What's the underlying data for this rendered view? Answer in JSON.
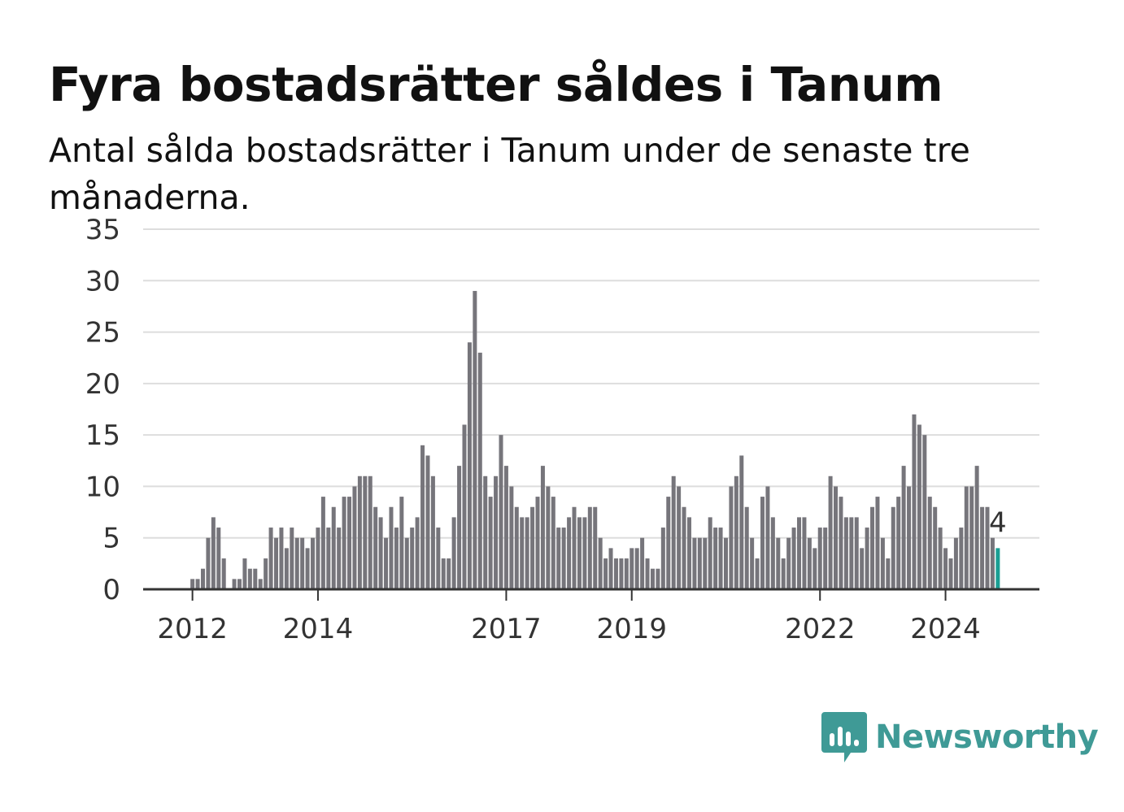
{
  "header": {
    "title": "Fyra bostadsrätter såldes i Tanum",
    "subtitle": "Antal sålda bostadsrätter i Tanum under de senaste tre månaderna."
  },
  "brand": {
    "name": "Newsworthy",
    "color": "#3f9a96",
    "icon": "newsworthy-logo-icon"
  },
  "colors": {
    "bar": "#76757b",
    "highlight": "#1a9e93",
    "grid": "#dddddd",
    "axis": "#333333"
  },
  "chart_data": {
    "type": "bar",
    "x_start": "2011-12",
    "x_tick_labels": [
      "2012",
      "2014",
      "2017",
      "2019",
      "2022",
      "2024"
    ],
    "y_ticks": [
      0,
      5,
      10,
      15,
      20,
      25,
      30,
      35
    ],
    "ylim": [
      0,
      35
    ],
    "grid": true,
    "highlight_label": "4",
    "values": [
      0,
      1,
      1,
      2,
      5,
      7,
      6,
      3,
      0,
      1,
      1,
      3,
      2,
      2,
      1,
      3,
      6,
      5,
      6,
      4,
      6,
      5,
      5,
      4,
      5,
      6,
      9,
      6,
      8,
      6,
      9,
      9,
      10,
      11,
      11,
      11,
      8,
      7,
      5,
      8,
      6,
      9,
      5,
      6,
      7,
      14,
      13,
      11,
      6,
      3,
      3,
      7,
      12,
      16,
      24,
      29,
      23,
      11,
      9,
      11,
      15,
      12,
      10,
      8,
      7,
      7,
      8,
      9,
      12,
      10,
      9,
      6,
      6,
      7,
      8,
      7,
      7,
      8,
      8,
      5,
      3,
      4,
      3,
      3,
      3,
      4,
      4,
      5,
      3,
      2,
      2,
      6,
      9,
      11,
      10,
      8,
      7,
      5,
      5,
      5,
      7,
      6,
      6,
      5,
      10,
      11,
      13,
      8,
      5,
      3,
      9,
      10,
      7,
      5,
      3,
      5,
      6,
      7,
      7,
      5,
      4,
      6,
      6,
      11,
      10,
      9,
      7,
      7,
      7,
      4,
      6,
      8,
      9,
      5,
      3,
      8,
      9,
      12,
      10,
      17,
      16,
      15,
      9,
      8,
      6,
      4,
      3,
      5,
      6,
      10,
      10,
      12,
      8,
      8,
      5,
      4
    ]
  }
}
